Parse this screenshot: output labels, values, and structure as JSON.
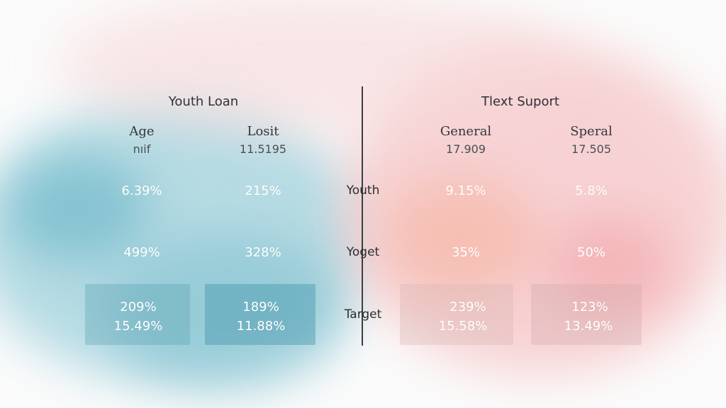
{
  "colors": {
    "left_wash": "#7fc3d2",
    "right_wash": "#f4b3b6",
    "divider": "#3a3f44"
  },
  "left_panel": {
    "title": "Youth Loan",
    "columns": [
      {
        "heading": "Age",
        "sub": "nıif"
      },
      {
        "heading": "Losit",
        "sub": "11.5195"
      }
    ]
  },
  "right_panel": {
    "title": "Tlext Suport",
    "columns": [
      {
        "heading": "General",
        "sub": "17.909"
      },
      {
        "heading": "Speral",
        "sub": "17.505"
      }
    ]
  },
  "rows": [
    {
      "label": "Youth",
      "values": [
        "6.39%",
        "215%",
        "9.15%",
        "5.8%"
      ]
    },
    {
      "label": "Yoget",
      "values": [
        "499%",
        "328%",
        "35%",
        "50%"
      ]
    },
    {
      "label": "Target",
      "values": [
        "209%",
        "189%",
        "239%",
        "123%"
      ],
      "values2": [
        "15.49%",
        "11.88%",
        "15.58%",
        "13.49%"
      ]
    }
  ]
}
